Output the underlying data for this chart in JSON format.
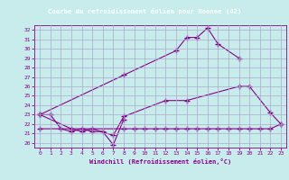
{
  "title": "Courbe du refroidissement éolien pour Roanne (42)",
  "xlabel": "Windchill (Refroidissement éolien,°C)",
  "xlim": [
    -0.5,
    23.5
  ],
  "ylim": [
    19.5,
    32.5
  ],
  "xticks": [
    0,
    1,
    2,
    3,
    4,
    5,
    6,
    7,
    8,
    9,
    10,
    11,
    12,
    13,
    14,
    15,
    16,
    17,
    18,
    19,
    20,
    21,
    22,
    23
  ],
  "yticks": [
    20,
    21,
    22,
    23,
    24,
    25,
    26,
    27,
    28,
    29,
    30,
    31,
    32
  ],
  "bg_color": "#c8ecec",
  "plot_bg": "#c8ecec",
  "line_color": "#880088",
  "grid_color": "#aaaacc",
  "title_bg": "#9900aa",
  "title_fg": "#ffffff",
  "s1_x": [
    0,
    1,
    2,
    3,
    4,
    5,
    6,
    7,
    8
  ],
  "s1_y": [
    23.0,
    23.0,
    21.5,
    21.2,
    21.5,
    21.2,
    21.2,
    19.8,
    22.5
  ],
  "s2_x": [
    0,
    3,
    4,
    5,
    7,
    8,
    12,
    14,
    19,
    20,
    22,
    23
  ],
  "s2_y": [
    23.0,
    21.5,
    21.2,
    21.5,
    20.8,
    22.8,
    24.5,
    24.5,
    26.0,
    26.0,
    23.2,
    22.0
  ],
  "s3_x": [
    0,
    8,
    13,
    14,
    15,
    16,
    17,
    19
  ],
  "s3_y": [
    23.0,
    27.2,
    29.8,
    31.2,
    31.2,
    32.2,
    30.5,
    29.0
  ],
  "s4_x": [
    0,
    8,
    9,
    10,
    11,
    12,
    13,
    14,
    15,
    16,
    17,
    18,
    19,
    20,
    21,
    22,
    23
  ],
  "s4_y": [
    21.5,
    21.5,
    21.5,
    21.5,
    21.5,
    21.5,
    21.5,
    21.5,
    21.5,
    21.5,
    21.5,
    21.5,
    21.5,
    21.5,
    21.5,
    21.5,
    22.0
  ]
}
